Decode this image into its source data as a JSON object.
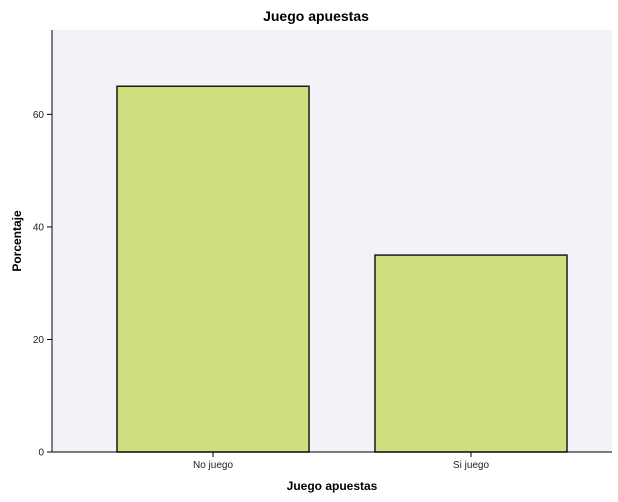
{
  "chart_data": {
    "type": "bar",
    "title": "Juego apuestas",
    "xlabel": "Juego apuestas",
    "ylabel": "Porcentaje",
    "categories": [
      "No juego",
      "Si juego"
    ],
    "values": [
      65,
      35
    ],
    "ylim": [
      0,
      75
    ],
    "yticks": [
      0,
      20,
      40,
      60
    ],
    "ytick_labels": [
      "0",
      "20",
      "40",
      "60"
    ],
    "grid": false,
    "legend": "none",
    "colors": {
      "bar_fill": "#cfdf7f",
      "bar_stroke": "#1a1a1a",
      "plot_background": "#f1f3f8",
      "axis": "#000000"
    }
  }
}
